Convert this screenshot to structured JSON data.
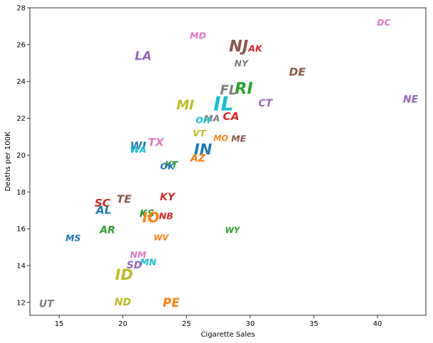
{
  "chart_data": {
    "type": "scatter",
    "title": "",
    "xlabel": "Cigarette Sales",
    "ylabel": "Deaths per 100K",
    "xlim": [
      12.7,
      43.8
    ],
    "ylim": [
      11.3,
      28.0
    ],
    "xticks": [
      15,
      20,
      25,
      30,
      35,
      40
    ],
    "yticks": [
      12,
      14,
      16,
      18,
      20,
      22,
      24,
      26,
      28
    ],
    "grid": false,
    "points": [
      {
        "label": "DC",
        "x": 40.5,
        "y": 27.2,
        "color": "#e377c2",
        "weight": 0.9
      },
      {
        "label": "MD",
        "x": 25.9,
        "y": 26.5,
        "color": "#e377c2",
        "weight": 0.9
      },
      {
        "label": "NJ",
        "x": 29.1,
        "y": 25.9,
        "color": "#8c564b",
        "weight": 1.6
      },
      {
        "label": "AK",
        "x": 30.4,
        "y": 25.8,
        "color": "#d62728",
        "weight": 0.9
      },
      {
        "label": "LA",
        "x": 21.6,
        "y": 25.4,
        "color": "#9467bd",
        "weight": 1.2
      },
      {
        "label": "NY",
        "x": 29.3,
        "y": 25.0,
        "color": "#7f7f7f",
        "weight": 0.9
      },
      {
        "label": "DE",
        "x": 33.7,
        "y": 24.5,
        "color": "#8c564b",
        "weight": 1.1
      },
      {
        "label": "RI",
        "x": 29.5,
        "y": 23.6,
        "color": "#2ca02c",
        "weight": 1.6
      },
      {
        "label": "FL",
        "x": 28.3,
        "y": 23.5,
        "color": "#7f7f7f",
        "weight": 1.3
      },
      {
        "label": "NE",
        "x": 42.6,
        "y": 23.0,
        "color": "#9467bd",
        "weight": 1.0
      },
      {
        "label": "IL",
        "x": 27.9,
        "y": 22.8,
        "color": "#17becf",
        "weight": 2.0
      },
      {
        "label": "CT",
        "x": 31.2,
        "y": 22.8,
        "color": "#9467bd",
        "weight": 1.0
      },
      {
        "label": "MI",
        "x": 24.9,
        "y": 22.7,
        "color": "#bcbd22",
        "weight": 1.3
      },
      {
        "label": "CA",
        "x": 28.5,
        "y": 22.1,
        "color": "#d62728",
        "weight": 1.1
      },
      {
        "label": "MA",
        "x": 27.0,
        "y": 22.0,
        "color": "#7f7f7f",
        "weight": 0.9
      },
      {
        "label": "OH",
        "x": 26.3,
        "y": 21.9,
        "color": "#17becf",
        "weight": 0.9
      },
      {
        "label": "VT",
        "x": 26.0,
        "y": 21.2,
        "color": "#bcbd22",
        "weight": 0.9
      },
      {
        "label": "MO",
        "x": 27.7,
        "y": 20.9,
        "color": "#ff7f0e",
        "weight": 0.8
      },
      {
        "label": "ME",
        "x": 29.1,
        "y": 20.9,
        "color": "#8c564b",
        "weight": 0.9
      },
      {
        "label": "TX",
        "x": 22.6,
        "y": 20.7,
        "color": "#e377c2",
        "weight": 1.1
      },
      {
        "label": "WI",
        "x": 21.2,
        "y": 20.5,
        "color": "#1f77b4",
        "weight": 1.1
      },
      {
        "label": "WA",
        "x": 21.2,
        "y": 20.3,
        "color": "#17becf",
        "weight": 0.9
      },
      {
        "label": "IN",
        "x": 26.3,
        "y": 20.3,
        "color": "#1f77b4",
        "weight": 1.5
      },
      {
        "label": "AZ",
        "x": 25.9,
        "y": 19.8,
        "color": "#ff7f0e",
        "weight": 1.0
      },
      {
        "label": "KT",
        "x": 23.8,
        "y": 19.5,
        "color": "#2ca02c",
        "weight": 0.9
      },
      {
        "label": "OK",
        "x": 23.5,
        "y": 19.4,
        "color": "#1f77b4",
        "weight": 0.9
      },
      {
        "label": "KY",
        "x": 23.5,
        "y": 17.7,
        "color": "#d62728",
        "weight": 1.0
      },
      {
        "label": "TE",
        "x": 20.1,
        "y": 17.6,
        "color": "#8c564b",
        "weight": 1.1
      },
      {
        "label": "SC",
        "x": 18.4,
        "y": 17.4,
        "color": "#d62728",
        "weight": 1.1
      },
      {
        "label": "AL",
        "x": 18.5,
        "y": 17.0,
        "color": "#1f77b4",
        "weight": 1.1
      },
      {
        "label": "KS",
        "x": 21.9,
        "y": 16.8,
        "color": "#2ca02c",
        "weight": 1.0
      },
      {
        "label": "NB",
        "x": 23.4,
        "y": 16.7,
        "color": "#d62728",
        "weight": 0.9
      },
      {
        "label": "IO",
        "x": 22.2,
        "y": 16.6,
        "color": "#ff7f0e",
        "weight": 1.4
      },
      {
        "label": "WY",
        "x": 28.6,
        "y": 15.9,
        "color": "#2ca02c",
        "weight": 0.8
      },
      {
        "label": "AR",
        "x": 18.8,
        "y": 15.9,
        "color": "#2ca02c",
        "weight": 1.0
      },
      {
        "label": "MS",
        "x": 16.1,
        "y": 15.5,
        "color": "#1f77b4",
        "weight": 0.9
      },
      {
        "label": "WV",
        "x": 23.0,
        "y": 15.5,
        "color": "#ff7f0e",
        "weight": 0.8
      },
      {
        "label": "NM",
        "x": 21.2,
        "y": 14.6,
        "color": "#e377c2",
        "weight": 0.9
      },
      {
        "label": "MN",
        "x": 22.0,
        "y": 14.2,
        "color": "#17becf",
        "weight": 0.9
      },
      {
        "label": "SD",
        "x": 20.9,
        "y": 14.0,
        "color": "#9467bd",
        "weight": 1.0
      },
      {
        "label": "ID",
        "x": 20.1,
        "y": 13.5,
        "color": "#bcbd22",
        "weight": 1.5
      },
      {
        "label": "UT",
        "x": 14.0,
        "y": 11.9,
        "color": "#7f7f7f",
        "weight": 1.0
      },
      {
        "label": "ND",
        "x": 20.0,
        "y": 12.0,
        "color": "#bcbd22",
        "weight": 1.0
      },
      {
        "label": "PE",
        "x": 23.8,
        "y": 12.0,
        "color": "#ff7f0e",
        "weight": 1.2
      }
    ]
  }
}
